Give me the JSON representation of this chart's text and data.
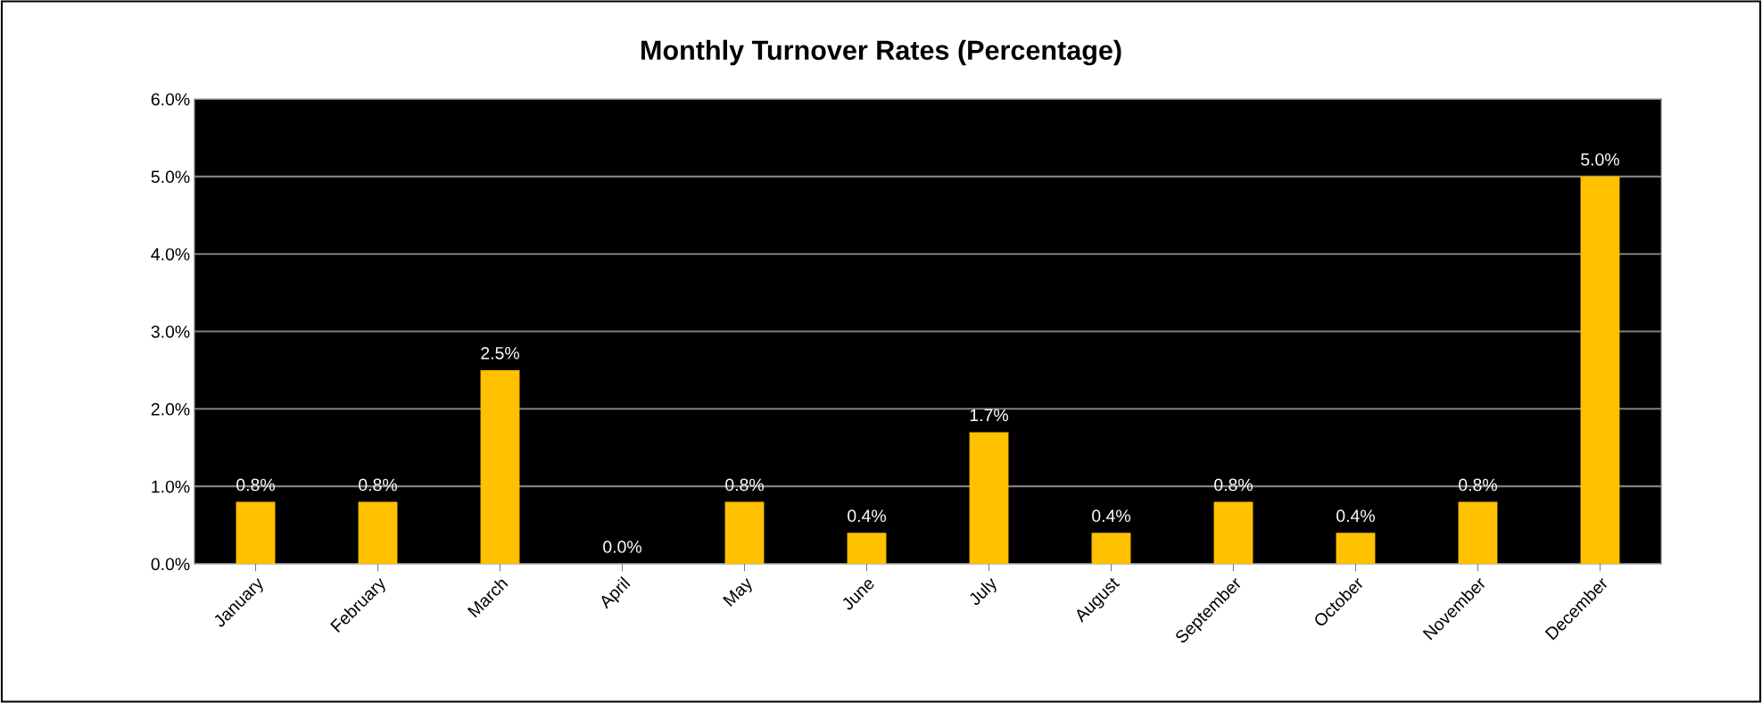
{
  "chart_data": {
    "type": "bar",
    "title": "Monthly Turnover Rates (Percentage)",
    "categories": [
      "January",
      "February",
      "March",
      "April",
      "May",
      "June",
      "July",
      "August",
      "September",
      "October",
      "November",
      "December"
    ],
    "values": [
      0.8,
      0.8,
      2.5,
      0.0,
      0.8,
      0.4,
      1.7,
      0.4,
      0.8,
      0.4,
      0.8,
      5.0
    ],
    "value_labels": [
      "0.8%",
      "0.8%",
      "2.5%",
      "0.0%",
      "0.8%",
      "0.4%",
      "1.7%",
      "0.4%",
      "0.8%",
      "0.4%",
      "0.8%",
      "5.0%"
    ],
    "color": "#ffc000",
    "ylim": [
      0,
      6
    ],
    "yticks": [
      {
        "value": 0,
        "label": "0.0%"
      },
      {
        "value": 1,
        "label": "1.0%"
      },
      {
        "value": 2,
        "label": "2.0%"
      },
      {
        "value": 3,
        "label": "3.0%"
      },
      {
        "value": 4,
        "label": "4.0%"
      },
      {
        "value": 5,
        "label": "5.0%"
      },
      {
        "value": 6,
        "label": "6.0%"
      }
    ],
    "grid": "y",
    "legend": false
  }
}
